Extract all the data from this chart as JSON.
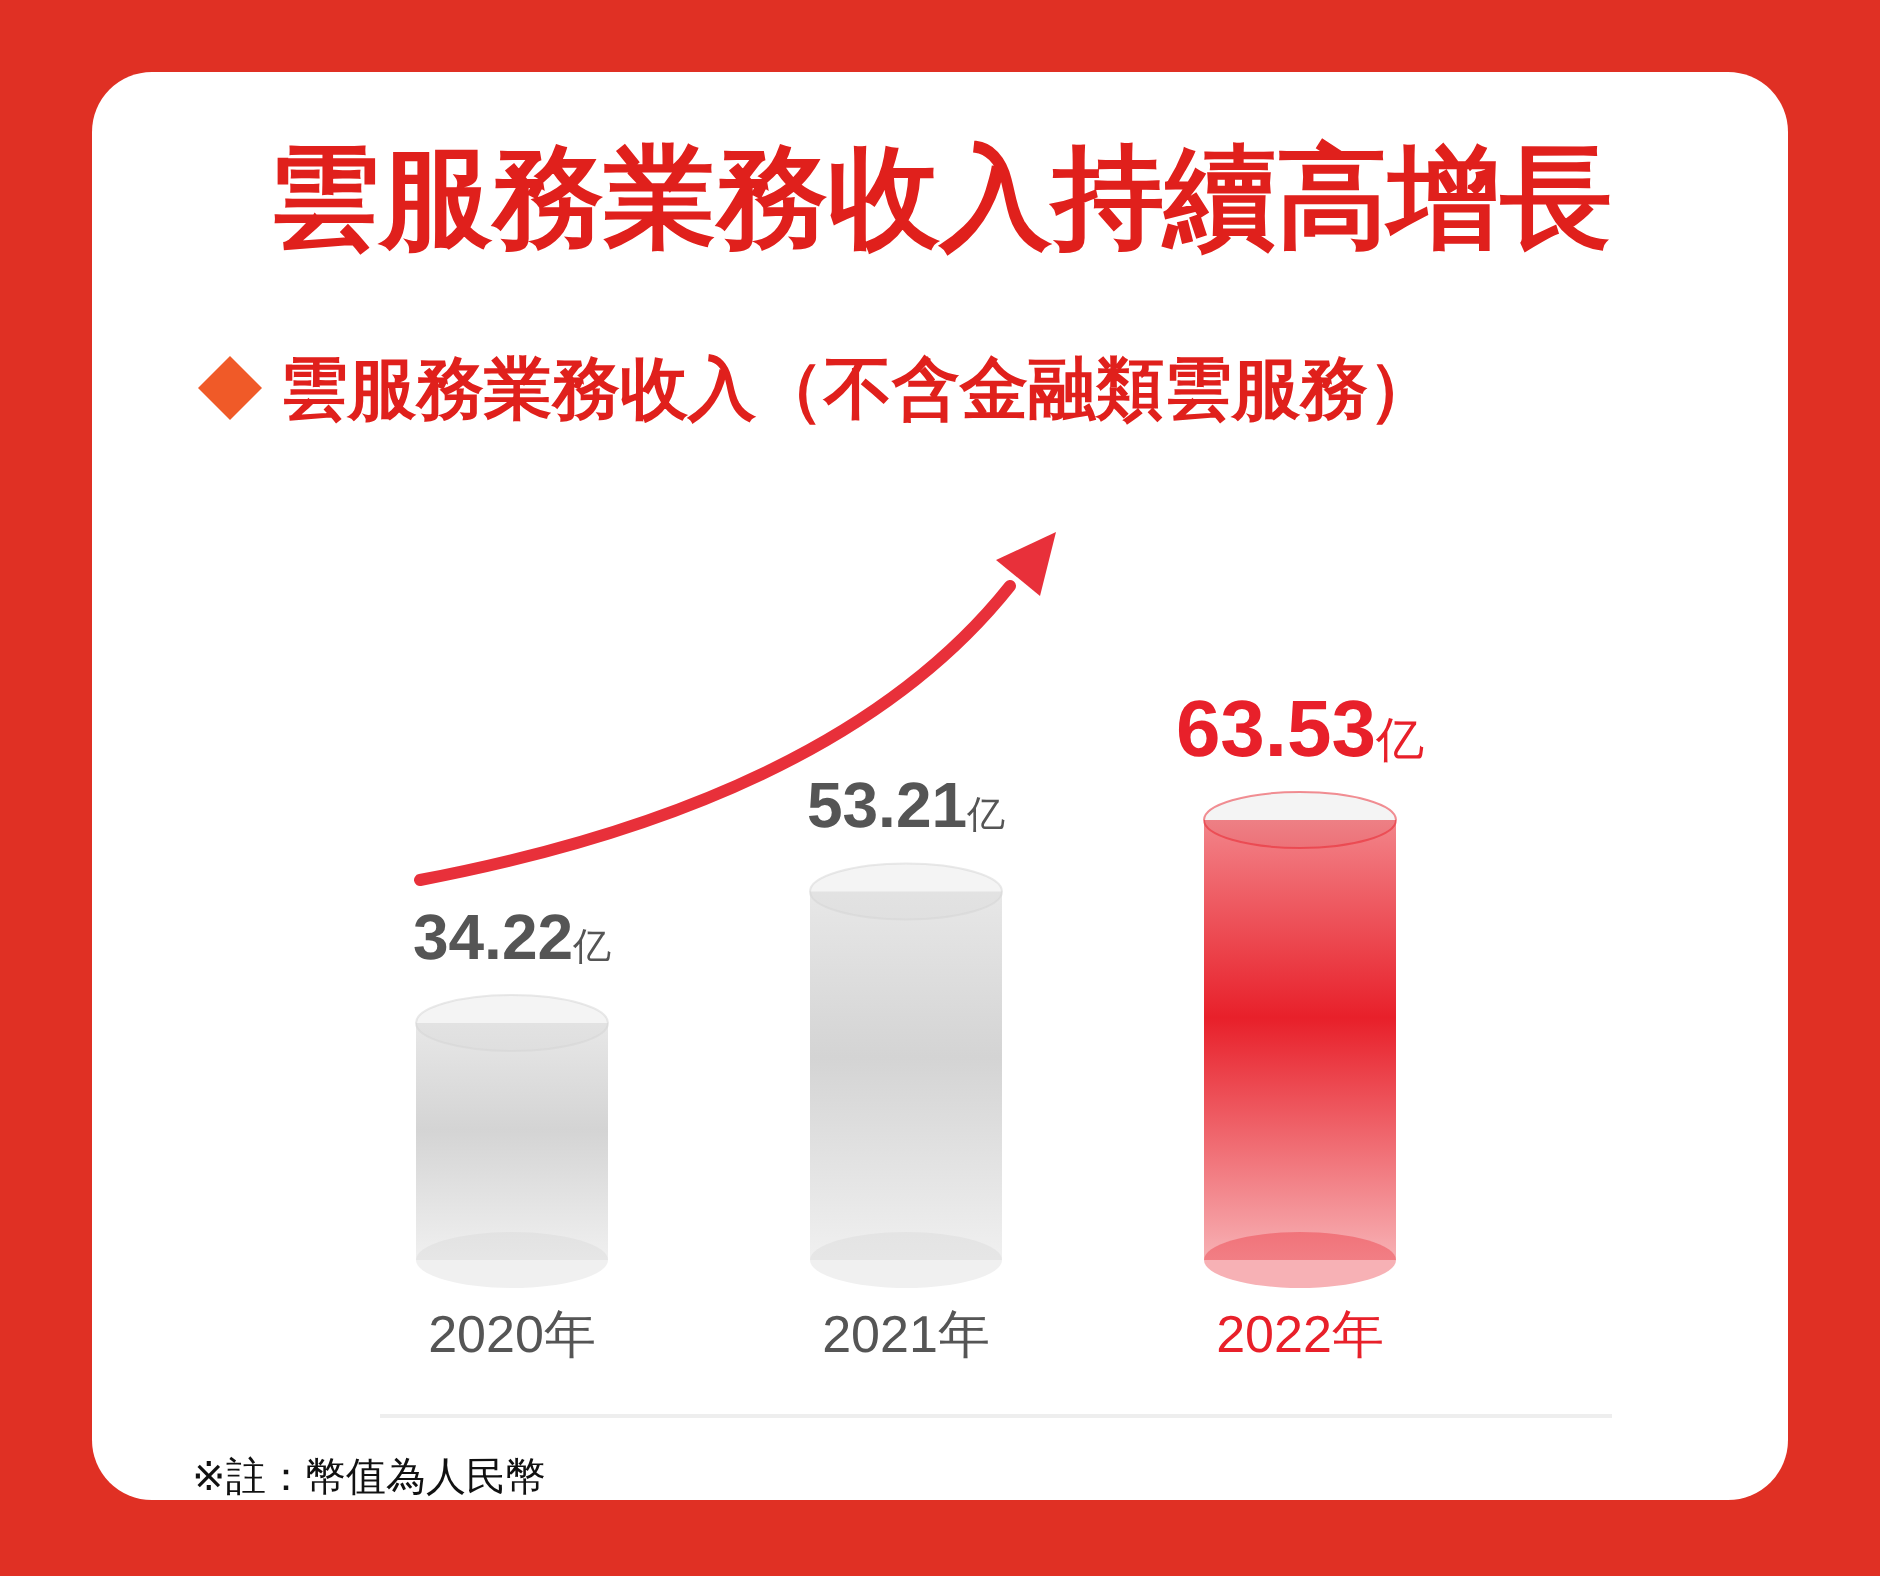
{
  "chart_data": {
    "type": "bar",
    "title": "雲服務業務收入持續高增長",
    "subtitle": "雲服務業務收入（不含金融類雲服務）",
    "categories": [
      "2020年",
      "2021年",
      "2022年"
    ],
    "values": [
      34.22,
      53.21,
      63.53
    ],
    "colors": [
      "#d4d4d4",
      "#d4d4d4",
      "#e8202a"
    ],
    "value_labels": [
      "34.22亿",
      "53.21亿",
      "63.53亿"
    ],
    "annotations": [
      "※註：幣值為人民幣"
    ]
  }
}
